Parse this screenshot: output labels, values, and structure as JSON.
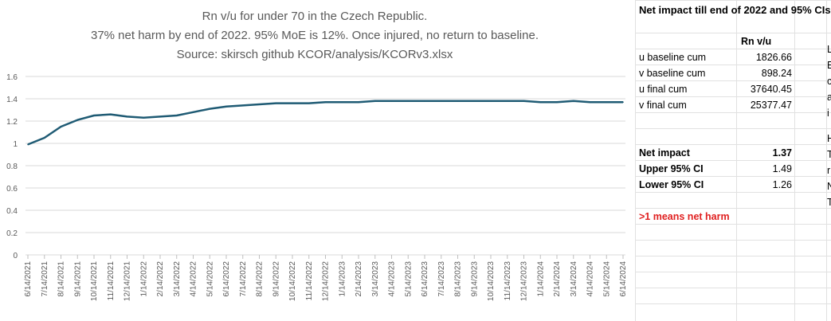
{
  "chart_data": {
    "type": "line",
    "title_lines": [
      "Rn v/u for under 70 in the Czech Republic.",
      "37% net harm by end of 2022. 95% MoE is 12%. Once injured, no return to baseline.",
      "Source: skirsch github KCOR/analysis/KCORv3.xlsx"
    ],
    "xlabel": "",
    "ylabel": "",
    "ylim": [
      0,
      1.6
    ],
    "yticks": [
      "0",
      "0.2",
      "0.4",
      "0.6",
      "0.8",
      "1",
      "1.2",
      "1.4",
      "1.6"
    ],
    "categories": [
      "6/14/2021",
      "7/14/2021",
      "8/14/2021",
      "9/14/2021",
      "10/14/2021",
      "11/14/2021",
      "12/14/2021",
      "1/14/2022",
      "2/14/2022",
      "3/14/2022",
      "4/14/2022",
      "5/14/2022",
      "6/14/2022",
      "7/14/2022",
      "8/14/2022",
      "9/14/2022",
      "10/14/2022",
      "11/14/2022",
      "12/14/2022",
      "1/14/2023",
      "2/14/2023",
      "3/14/2023",
      "4/14/2023",
      "5/14/2023",
      "6/14/2023",
      "7/14/2023",
      "8/14/2023",
      "9/14/2023",
      "10/14/2023",
      "11/14/2023",
      "12/14/2023",
      "1/14/2024",
      "2/14/2024",
      "3/14/2024",
      "4/14/2024",
      "5/14/2024",
      "6/14/2024"
    ],
    "series": [
      {
        "color": "#1f5b74",
        "values": [
          0.99,
          1.05,
          1.15,
          1.21,
          1.25,
          1.26,
          1.24,
          1.23,
          1.24,
          1.25,
          1.28,
          1.31,
          1.33,
          1.34,
          1.35,
          1.36,
          1.36,
          1.36,
          1.37,
          1.37,
          1.37,
          1.38,
          1.38,
          1.38,
          1.38,
          1.38,
          1.38,
          1.38,
          1.38,
          1.38,
          1.38,
          1.37,
          1.37,
          1.38,
          1.37,
          1.37,
          1.37
        ]
      }
    ],
    "grid": true
  },
  "sheet": {
    "header": "Net impact till end of 2022 and 95% CIs",
    "col_header": "Rn v/u",
    "rows": [
      {
        "label": "u baseline cum",
        "value": "1826.66"
      },
      {
        "label": "v baseline cum",
        "value": "898.24"
      },
      {
        "label": "u final cum",
        "value": "37640.45"
      },
      {
        "label": "v final cum",
        "value": "25377.47"
      }
    ],
    "stats": [
      {
        "label": "Net impact",
        "value": "1.37"
      },
      {
        "label": "Upper 95% CI",
        "value": "1.49"
      },
      {
        "label": "Lower 95% CI",
        "value": "1.26"
      }
    ],
    "note": ">1 means net harm",
    "overflow_letters": [
      "L",
      "E",
      "c",
      "a",
      "i",
      "",
      "H",
      "T",
      "r",
      "N",
      "T"
    ]
  }
}
